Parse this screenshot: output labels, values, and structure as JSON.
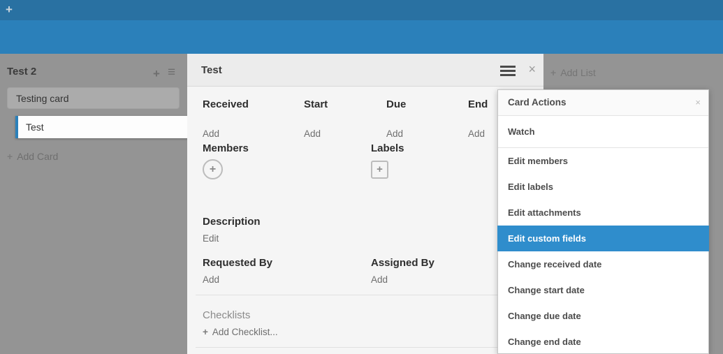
{
  "navbar": {
    "add_icon": "+"
  },
  "board": {
    "list": {
      "title": "Test 2",
      "add_icon": "+",
      "menu_icon": "≡",
      "cards": [
        {
          "title": "Testing card",
          "open": false
        },
        {
          "title": "Test",
          "open": true
        }
      ],
      "add_card_label": "Add Card",
      "plus_icon": "+"
    },
    "add_list_label": "Add List",
    "add_list_icon": "+"
  },
  "card_detail": {
    "title": "Test",
    "menu_icon": "hamburger",
    "close_icon": "×",
    "date_fields": [
      {
        "label": "Received",
        "action": "Add"
      },
      {
        "label": "Start",
        "action": "Add"
      },
      {
        "label": "Due",
        "action": "Add"
      },
      {
        "label": "End",
        "action": "Add"
      }
    ],
    "members": {
      "label": "Members",
      "add_icon": "+"
    },
    "labels": {
      "label": "Labels",
      "add_icon": "+"
    },
    "description": {
      "label": "Description",
      "action": "Edit"
    },
    "requested_by": {
      "label": "Requested By",
      "action": "Add"
    },
    "assigned_by": {
      "label": "Assigned By",
      "action": "Add"
    },
    "checklists": {
      "label": "Checklists",
      "add_label": "Add Checklist...",
      "plus_icon": "+"
    }
  },
  "card_actions_menu": {
    "title": "Card Actions",
    "close_icon": "×",
    "items": [
      {
        "label": "Watch",
        "highlighted": false
      },
      {
        "label": "Edit members",
        "highlighted": false
      },
      {
        "label": "Edit labels",
        "highlighted": false
      },
      {
        "label": "Edit attachments",
        "highlighted": false
      },
      {
        "label": "Edit custom fields",
        "highlighted": true
      },
      {
        "label": "Change received date",
        "highlighted": false
      },
      {
        "label": "Change start date",
        "highlighted": false
      },
      {
        "label": "Change due date",
        "highlighted": false
      },
      {
        "label": "Change end date",
        "highlighted": false
      }
    ]
  },
  "colors": {
    "navbar": "#2971a2",
    "header_band": "#2b80ba",
    "board_overlay": "#949494",
    "open_card_accent": "#2b80ba",
    "menu_highlight": "#2f8dcc"
  }
}
